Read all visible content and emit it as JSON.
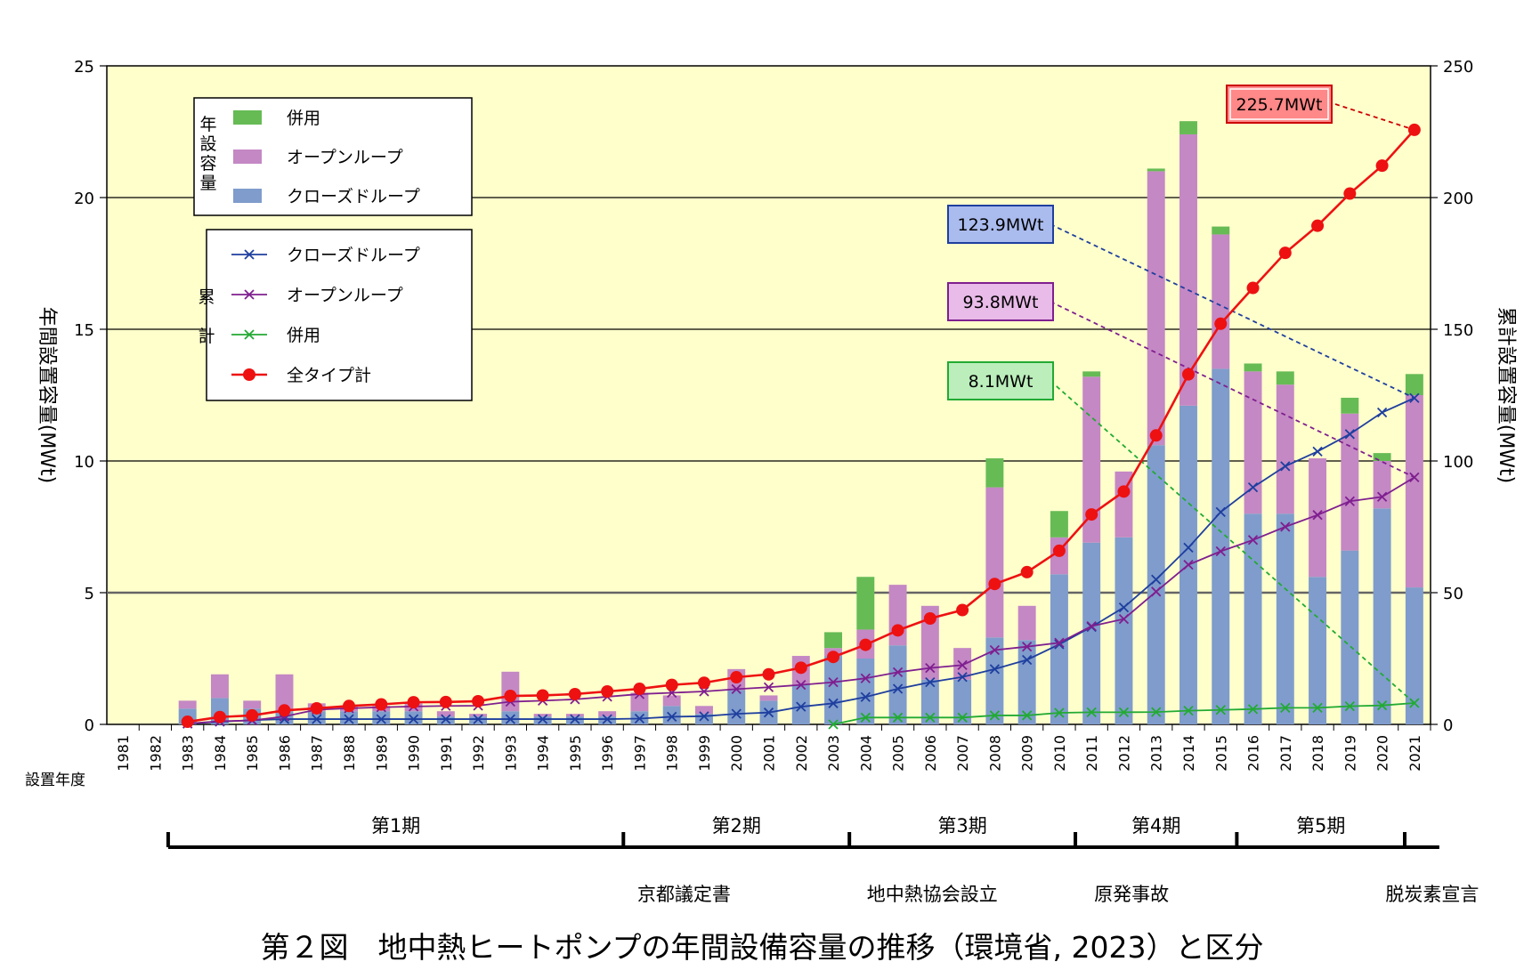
{
  "caption": "第２図　地中熱ヒートポンプの年間設備容量の推移（環境省, 2023）と区分",
  "chart_data": {
    "type": "bar",
    "ylabel_left": "年間設置容量(MWt)",
    "ylabel_right": "累計設置容量(MWt)",
    "xlabel": "設置年度",
    "ylim_left": [
      0,
      25
    ],
    "ylim_right": [
      0,
      250
    ],
    "yticks_left": [
      0,
      5,
      10,
      15,
      20,
      25
    ],
    "yticks_right": [
      0,
      50,
      100,
      150,
      200,
      250
    ],
    "gridlines": [
      5,
      10,
      15,
      20
    ],
    "background": "#ffffcc",
    "categories": [
      "1981",
      "1982",
      "1983",
      "1984",
      "1985",
      "1986",
      "1987",
      "1988",
      "1989",
      "1990",
      "1991",
      "1992",
      "1993",
      "1994",
      "1995",
      "1996",
      "1997",
      "1998",
      "1999",
      "2000",
      "2001",
      "2002",
      "2003",
      "2004",
      "2005",
      "2006",
      "2007",
      "2008",
      "2009",
      "2010",
      "2011",
      "2012",
      "2013",
      "2014",
      "2015",
      "2016",
      "2017",
      "2018",
      "2019",
      "2020",
      "2021"
    ],
    "bar_series": [
      {
        "name": "クローズドループ",
        "color": "#7f9ccc",
        "values": [
          0,
          0,
          0.6,
          1.0,
          0.6,
          0.5,
          0.5,
          0.5,
          0.5,
          0.5,
          0.3,
          0.3,
          0.5,
          0.3,
          0.3,
          0.3,
          0.5,
          0.7,
          0.4,
          1.3,
          0.9,
          1.5,
          2.6,
          2.5,
          3.0,
          1.7,
          1.7,
          3.3,
          3.2,
          5.7,
          6.9,
          7.1,
          10.6,
          12.1,
          13.5,
          8.0,
          8.0,
          5.6,
          6.6,
          8.2,
          5.2
        ]
      },
      {
        "name": "オープンループ",
        "color": "#c488c4",
        "values": [
          0,
          0,
          0.3,
          0.9,
          0.3,
          1.4,
          0.3,
          0.2,
          0.2,
          0.3,
          0.2,
          0.1,
          1.5,
          0.1,
          0.1,
          0.2,
          0.7,
          0.4,
          0.3,
          0.8,
          0.2,
          1.1,
          0.3,
          1.1,
          2.3,
          2.8,
          1.2,
          5.7,
          1.3,
          1.4,
          6.3,
          2.5,
          10.4,
          10.3,
          5.1,
          5.4,
          4.9,
          4.5,
          5.2,
          1.8,
          7.3
        ]
      },
      {
        "name": "併用",
        "color": "#66bb55",
        "values": [
          0,
          0,
          0,
          0,
          0,
          0,
          0,
          0,
          0,
          0,
          0,
          0,
          0,
          0,
          0,
          0,
          0,
          0,
          0,
          0,
          0,
          0,
          0.6,
          2.0,
          0,
          0,
          0,
          1.1,
          0,
          1.0,
          0.2,
          0,
          0.1,
          0.5,
          0.3,
          0.3,
          0.5,
          0,
          0.6,
          0.3,
          0.8
        ]
      }
    ],
    "line_series": [
      {
        "name": "クローズドループ",
        "color": "#1f3f9f",
        "marker": "x",
        "values": [
          null,
          null,
          0.3,
          1.0,
          1.6,
          2.0,
          2.0,
          2.0,
          2.0,
          2.0,
          2.0,
          2.0,
          2.0,
          2.0,
          2.0,
          2.0,
          2.2,
          2.9,
          3.1,
          4.0,
          4.5,
          6.7,
          8.0,
          10.4,
          13.5,
          16.0,
          18.0,
          21.0,
          24.5,
          30.4,
          37.0,
          44.4,
          55.0,
          67.1,
          80.6,
          90.0,
          98.0,
          103.6,
          110.2,
          118.4,
          123.9
        ]
      },
      {
        "name": "オープンループ",
        "color": "#7f1f8f",
        "marker": "x",
        "values": [
          null,
          null,
          0.3,
          1.2,
          1.5,
          3.0,
          5.6,
          6.1,
          6.5,
          6.8,
          7.0,
          7.1,
          8.6,
          9.0,
          9.5,
          10.5,
          11.5,
          12.0,
          12.5,
          13.4,
          14.1,
          15.0,
          16.0,
          17.5,
          19.8,
          21.4,
          22.5,
          28.2,
          29.5,
          31.0,
          37.3,
          40.0,
          50.4,
          60.6,
          65.7,
          70.0,
          75.0,
          79.5,
          84.7,
          86.4,
          93.8
        ]
      },
      {
        "name": "併用",
        "color": "#22aa33",
        "marker": "x",
        "values": [
          null,
          null,
          null,
          null,
          null,
          null,
          null,
          null,
          null,
          null,
          null,
          null,
          null,
          null,
          null,
          null,
          null,
          null,
          null,
          null,
          null,
          null,
          0.0,
          2.6,
          2.6,
          2.6,
          2.6,
          3.4,
          3.4,
          4.4,
          4.6,
          4.6,
          4.7,
          5.2,
          5.5,
          5.8,
          6.3,
          6.3,
          6.9,
          7.2,
          8.1
        ]
      },
      {
        "name": "全タイプ計",
        "color": "#ee1111",
        "marker": "circle",
        "values": [
          null,
          null,
          1.0,
          2.8,
          3.4,
          5.3,
          6.1,
          7.0,
          7.6,
          8.4,
          8.5,
          8.8,
          10.8,
          11.0,
          11.5,
          12.5,
          13.5,
          15.0,
          15.8,
          17.9,
          19.0,
          21.5,
          25.6,
          30.2,
          35.7,
          40.2,
          43.4,
          53.3,
          57.8,
          65.9,
          79.7,
          88.4,
          109.7,
          132.9,
          152.1,
          165.7,
          179.0,
          189.3,
          201.5,
          212.1,
          225.7
        ]
      }
    ],
    "legend_bar_group": "年設容量",
    "legend_line_group": "累計",
    "callouts": [
      {
        "text": "225.7MWt",
        "series": "全タイプ計",
        "fill": "#ff8888",
        "border": "#cc0000"
      },
      {
        "text": "123.9MWt",
        "series": "クローズドループ",
        "fill": "#aabbee",
        "border": "#1f3f9f"
      },
      {
        "text": "93.8MWt",
        "series": "オープンループ",
        "fill": "#e8bbe8",
        "border": "#7f1f8f"
      },
      {
        "text": "8.1MWt",
        "series": "併用",
        "fill": "#bbeebb",
        "border": "#22aa33"
      }
    ],
    "periods": [
      {
        "label": "第1期",
        "from": "1983",
        "to": "1997"
      },
      {
        "label": "第2期",
        "from": "1997",
        "to": "2004"
      },
      {
        "label": "第3期",
        "from": "2004",
        "to": "2011"
      },
      {
        "label": "第4期",
        "from": "2011",
        "to": "2016"
      },
      {
        "label": "第5期",
        "from": "2016",
        "to": "2021"
      }
    ],
    "events": [
      {
        "label": "京都議定書",
        "year": "1997"
      },
      {
        "label": "地中熱協会設立",
        "year": "2004"
      },
      {
        "label": "原発事故",
        "year": "2011"
      },
      {
        "label": "脱炭素宣言",
        "year": "2021"
      }
    ]
  }
}
